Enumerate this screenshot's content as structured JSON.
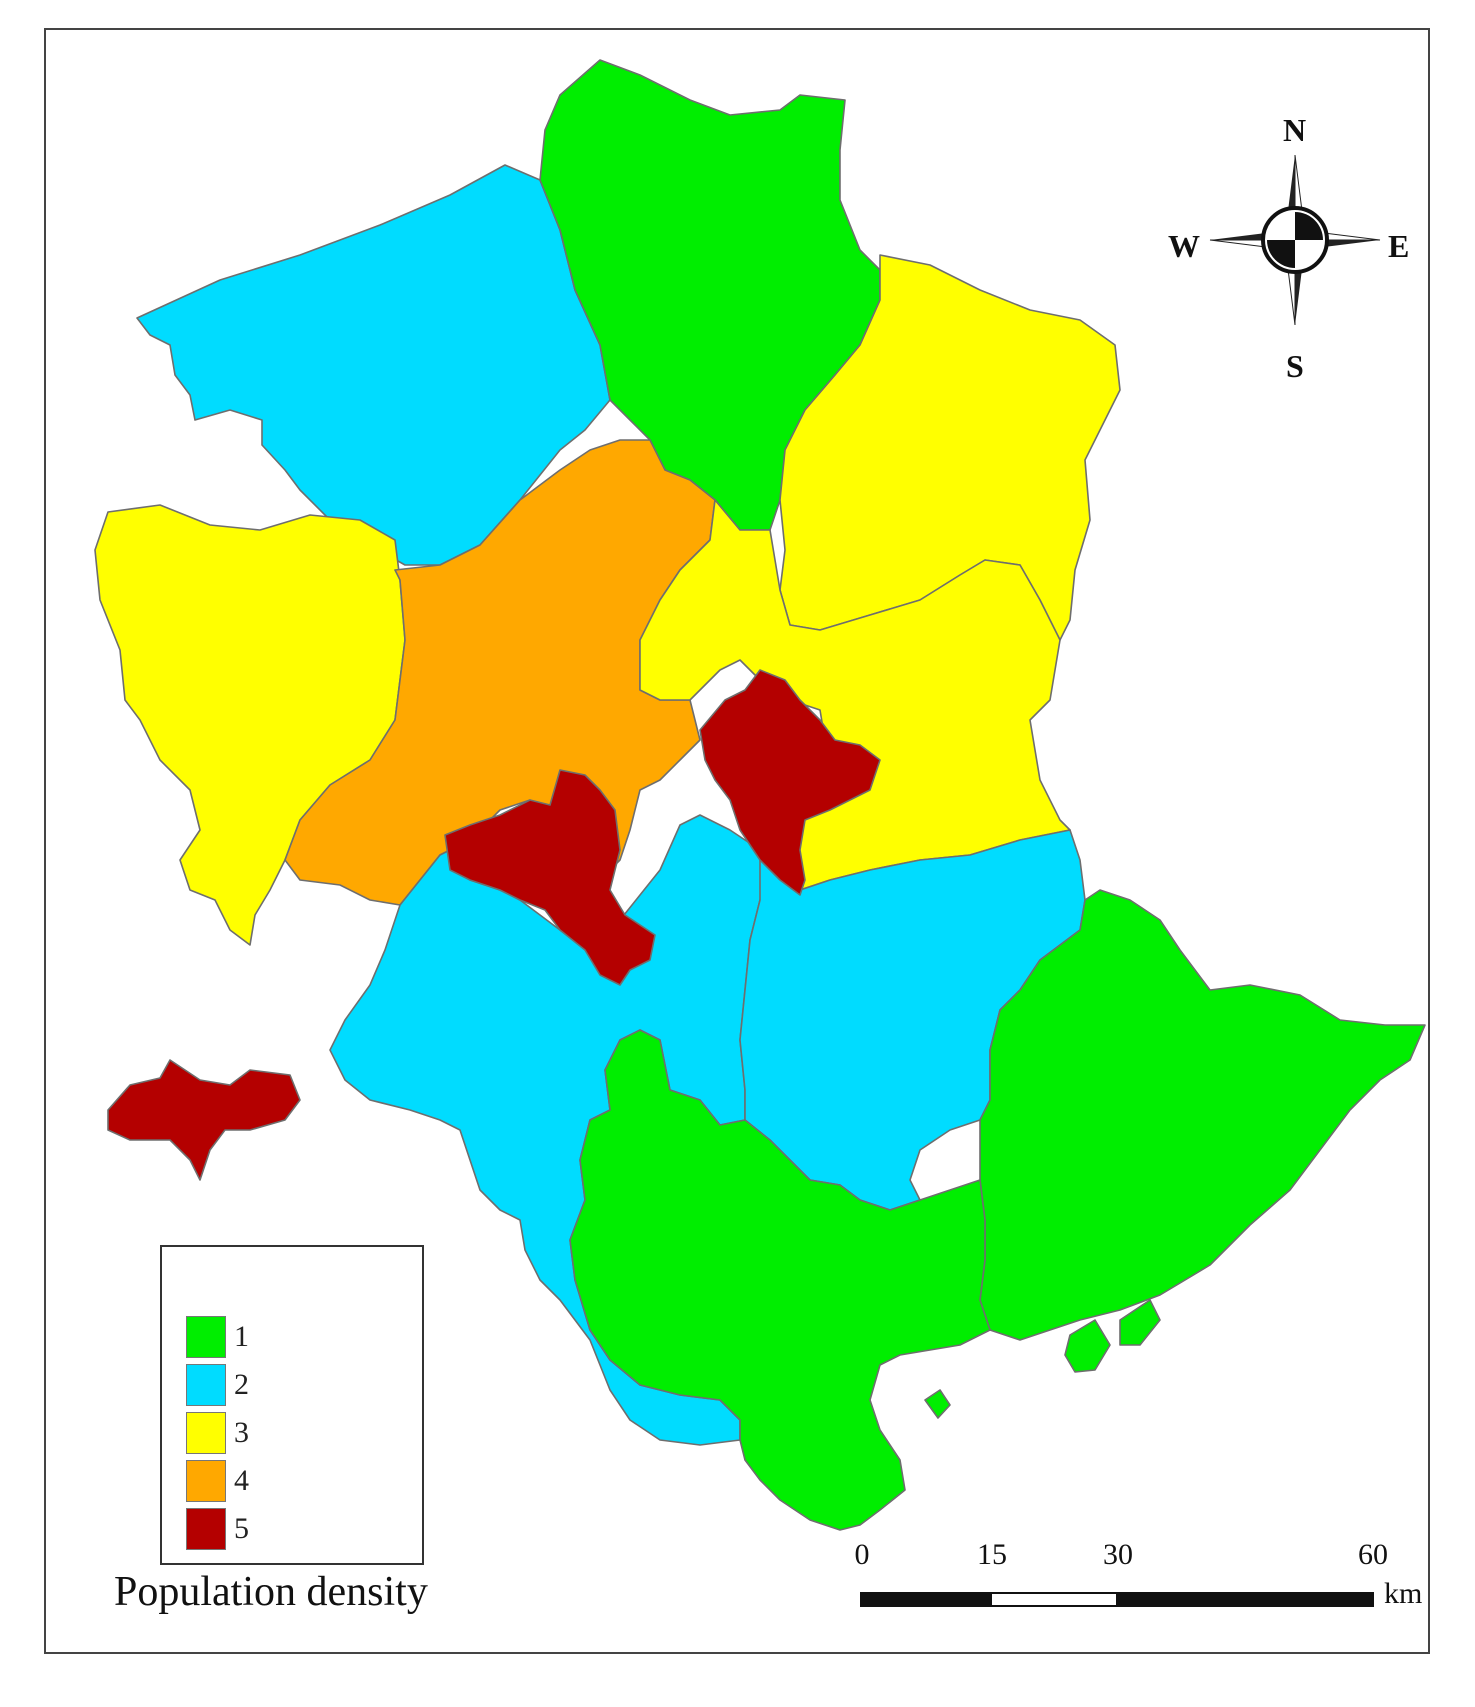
{
  "legend": {
    "title": "Population density",
    "classes": [
      {
        "label": "1",
        "color": "#00ee00"
      },
      {
        "label": "2",
        "color": "#00dcff"
      },
      {
        "label": "3",
        "color": "#ffff00"
      },
      {
        "label": "4",
        "color": "#ffa800"
      },
      {
        "label": "5",
        "color": "#b40000"
      }
    ]
  },
  "compass": {
    "north": "N",
    "south": "S",
    "east": "E",
    "west": "W"
  },
  "scale_bar": {
    "ticks": [
      "0",
      "15",
      "30",
      "60"
    ],
    "unit": "km"
  }
}
